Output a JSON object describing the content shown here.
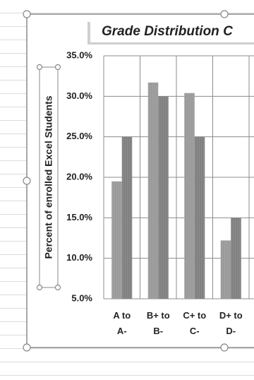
{
  "chart_data": {
    "type": "bar",
    "title": "Grade Distribution C",
    "y_label": "Percent of enrolled Excel Students",
    "categories": [
      "A to A-",
      "B+ to B-",
      "C+ to C-",
      "D+ to D-"
    ],
    "series": [
      {
        "color": "#9a9a9a",
        "values": [
          19.5,
          31.7,
          30.4,
          12.2
        ]
      },
      {
        "color": "#808080",
        "values": [
          25,
          30,
          25,
          15
        ]
      }
    ],
    "ylim": [
      5,
      35
    ],
    "yticks": [
      {
        "value": 5,
        "label": "5.0%"
      },
      {
        "value": 10,
        "label": "10.0%"
      },
      {
        "value": 15,
        "label": "15.0%"
      },
      {
        "value": 20,
        "label": "20.0%"
      },
      {
        "value": 25,
        "label": "25.0%"
      },
      {
        "value": 30,
        "label": "30.0%"
      },
      {
        "value": 35,
        "label": "35.0%"
      }
    ],
    "grid": true
  }
}
